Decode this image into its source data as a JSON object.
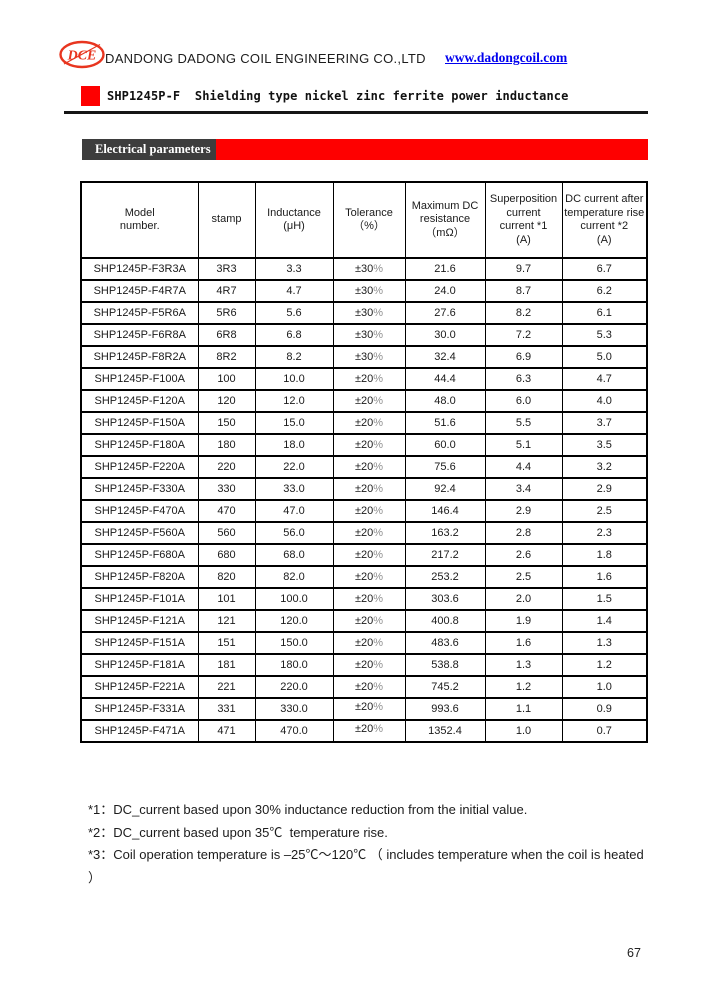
{
  "colors": {
    "accent_red": "#fe0000",
    "banner_dark": "#3d3d3d",
    "link_blue": "#0000ee"
  },
  "header": {
    "logo_text": "DCE",
    "company": "DANDONG DADONG COIL ENGINEERING CO.,LTD",
    "website": "www.dadongcoil.com"
  },
  "title": {
    "text": "SHP1245P-F  Shielding type nickel zinc ferrite power inductance"
  },
  "section": {
    "label": "Electrical parameters"
  },
  "table": {
    "columns": [
      "Model\nnumber.",
      "stamp",
      "Inductance\n(μH)",
      "Tolerance（%）",
      "Maximum DC\nresistance\n（mΩ）",
      "Superposition\ncurrent\ncurrent *1\n(A)",
      "DC current after\ntemperature rise\ncurrent *2\n(A)"
    ],
    "rows": [
      [
        "SHP1245P-F3R3A",
        "3R3",
        "3.3",
        "±30%",
        "21.6",
        "9.7",
        "6.7"
      ],
      [
        "SHP1245P-F4R7A",
        "4R7",
        "4.7",
        "±30%",
        "24.0",
        "8.7",
        "6.2"
      ],
      [
        "SHP1245P-F5R6A",
        "5R6",
        "5.6",
        "±30%",
        "27.6",
        "8.2",
        "6.1"
      ],
      [
        "SHP1245P-F6R8A",
        "6R8",
        "6.8",
        "±30%",
        "30.0",
        "7.2",
        "5.3"
      ],
      [
        "SHP1245P-F8R2A",
        "8R2",
        "8.2",
        "±30%",
        "32.4",
        "6.9",
        "5.0"
      ],
      [
        "SHP1245P-F100A",
        "100",
        "10.0",
        "±20%",
        "44.4",
        "6.3",
        "4.7"
      ],
      [
        "SHP1245P-F120A",
        "120",
        "12.0",
        "±20%",
        "48.0",
        "6.0",
        "4.0"
      ],
      [
        "SHP1245P-F150A",
        "150",
        "15.0",
        "±20%",
        "51.6",
        "5.5",
        "3.7"
      ],
      [
        "SHP1245P-F180A",
        "180",
        "18.0",
        "±20%",
        "60.0",
        "5.1",
        "3.5"
      ],
      [
        "SHP1245P-F220A",
        "220",
        "22.0",
        "±20%",
        "75.6",
        "4.4",
        "3.2"
      ],
      [
        "SHP1245P-F330A",
        "330",
        "33.0",
        "±20%",
        "92.4",
        "3.4",
        "2.9"
      ],
      [
        "SHP1245P-F470A",
        "470",
        "47.0",
        "±20%",
        "146.4",
        "2.9",
        "2.5"
      ],
      [
        "SHP1245P-F560A",
        "560",
        "56.0",
        "±20%",
        "163.2",
        "2.8",
        "2.3"
      ],
      [
        "SHP1245P-F680A",
        "680",
        "68.0",
        "±20%",
        "217.2",
        "2.6",
        "1.8"
      ],
      [
        "SHP1245P-F820A",
        "820",
        "82.0",
        "±20%",
        "253.2",
        "2.5",
        "1.6"
      ],
      [
        "SHP1245P-F101A",
        "101",
        "100.0",
        "±20%",
        "303.6",
        "2.0",
        "1.5"
      ],
      [
        "SHP1245P-F121A",
        "121",
        "120.0",
        "±20%",
        "400.8",
        "1.9",
        "1.4"
      ],
      [
        "SHP1245P-F151A",
        "151",
        "150.0",
        "±20%",
        "483.6",
        "1.6",
        "1.3"
      ],
      [
        "SHP1245P-F181A",
        "181",
        "180.0",
        "±20%",
        "538.8",
        "1.3",
        "1.2"
      ],
      [
        "SHP1245P-F221A",
        "221",
        "220.0",
        "±20%",
        "745.2",
        "1.2",
        "1.0"
      ],
      [
        "SHP1245P-F331A",
        "331",
        "330.0",
        "±20%",
        "993.6",
        "1.1",
        "0.9"
      ],
      [
        "SHP1245P-F471A",
        "471",
        "470.0",
        "±20%",
        "1352.4",
        "1.0",
        "0.7"
      ]
    ]
  },
  "notes": [
    "*1：DC_current based upon 30% inductance reduction from the initial value.",
    "*2：DC_current based upon 35℃  temperature rise.",
    "*3：Coil operation temperature is –25℃～120℃ （ includes temperature when the coil is heated ）"
  ],
  "page_number": "67"
}
